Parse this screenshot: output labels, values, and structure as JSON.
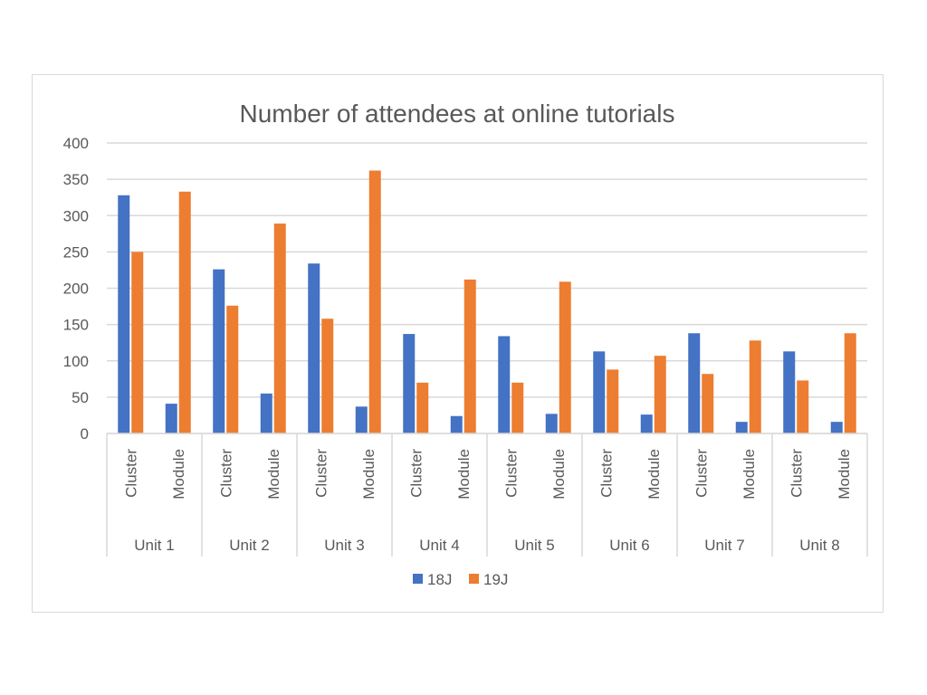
{
  "chart_data": {
    "type": "bar",
    "title": "Number of attendees at online tutorials",
    "ylim": [
      0,
      400
    ],
    "yticks": [
      "0",
      "50",
      "100",
      "150",
      "200",
      "250",
      "300",
      "350",
      "400"
    ],
    "grid": true,
    "legend_position": "bottom",
    "groups": [
      {
        "label": "Unit 1",
        "categories": [
          "Cluster",
          "Module"
        ]
      },
      {
        "label": "Unit 2",
        "categories": [
          "Cluster",
          "Module"
        ]
      },
      {
        "label": "Unit 3",
        "categories": [
          "Cluster",
          "Module"
        ]
      },
      {
        "label": "Unit 4",
        "categories": [
          "Cluster",
          "Module"
        ]
      },
      {
        "label": "Unit 5",
        "categories": [
          "Cluster",
          "Module"
        ]
      },
      {
        "label": "Unit 6",
        "categories": [
          "Cluster",
          "Module"
        ]
      },
      {
        "label": "Unit 7",
        "categories": [
          "Cluster",
          "Module"
        ]
      },
      {
        "label": "Unit 8",
        "categories": [
          "Cluster",
          "Module"
        ]
      }
    ],
    "series": [
      {
        "name": "18J",
        "color": "#4472C4",
        "values": [
          328,
          41,
          226,
          55,
          234,
          37,
          137,
          24,
          134,
          27,
          113,
          26,
          138,
          16,
          113,
          16
        ]
      },
      {
        "name": "19J",
        "color": "#ED7D31",
        "values": [
          250,
          333,
          176,
          289,
          158,
          362,
          70,
          212,
          70,
          209,
          88,
          107,
          82,
          128,
          73,
          138
        ]
      }
    ]
  }
}
